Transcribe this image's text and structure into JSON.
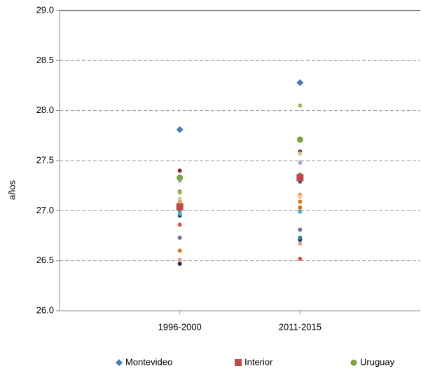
{
  "chart_data": {
    "type": "scatter",
    "y_label": "años",
    "categories": [
      "1996-2000",
      "2011-2015",
      null
    ],
    "ylim": [
      26.0,
      29.0
    ],
    "yticks": [
      {
        "value": 26.0,
        "label": "26.0"
      },
      {
        "value": 26.5,
        "label": "26.5"
      },
      {
        "value": 27.0,
        "label": "27.0"
      },
      {
        "value": 27.5,
        "label": "27.5"
      },
      {
        "value": 28.0,
        "label": "28.0"
      },
      {
        "value": 28.5,
        "label": "28.5"
      },
      {
        "value": 29.0,
        "label": "29.0"
      }
    ],
    "grid": true,
    "legend": "bottom",
    "series": [
      {
        "name": "Montevideo",
        "color": "#4a7ebb",
        "marker": "diamond",
        "values": [
          27.81,
          28.28,
          null
        ]
      },
      {
        "name": "Interior",
        "color": "#be4b48",
        "marker": "square",
        "values": [
          27.04,
          27.33,
          null
        ]
      },
      {
        "name": "Uruguay",
        "color": "#7ea345",
        "marker": "circle",
        "values": [
          27.33,
          27.71,
          null
        ]
      },
      {
        "color": "#8b2a2a",
        "values": [
          27.4,
          27.59,
          null
        ]
      },
      {
        "color": "#6e8c3a",
        "values": [
          27.19,
          27.36,
          null
        ]
      },
      {
        "color": "#9bbb59",
        "values": [
          27.18,
          28.05,
          null
        ]
      },
      {
        "color": "#c3d69b",
        "values": [
          27.12,
          27.57,
          null
        ]
      },
      {
        "color": "#f59d56",
        "values": [
          27.09,
          27.16,
          null
        ]
      },
      {
        "color": "#fac090",
        "values": [
          27.06,
          27.14,
          null
        ]
      },
      {
        "color": "#e46c0a",
        "values": [
          27.03,
          27.03,
          null
        ]
      },
      {
        "color": "#4f81bd",
        "values": [
          27.0,
          27.29,
          null
        ]
      },
      {
        "color": "#1f497d",
        "values": [
          26.95,
          27.3,
          null
        ]
      },
      {
        "color": "#4bacc6",
        "values": [
          26.97,
          26.99,
          null
        ]
      },
      {
        "color": "#d9534f",
        "values": [
          26.86,
          26.52,
          null
        ]
      },
      {
        "color": "#8064a2",
        "values": [
          26.73,
          26.81,
          null
        ]
      },
      {
        "color": "#b3a2c7",
        "values": [
          27.3,
          27.48,
          null
        ]
      },
      {
        "color": "#d87a1a",
        "values": [
          26.6,
          27.09,
          null
        ]
      },
      {
        "color": "#e6a0a0",
        "values": [
          26.51,
          26.67,
          null
        ]
      },
      {
        "color": "#17365d",
        "values": [
          26.47,
          26.71,
          null
        ]
      },
      {
        "color": "#31859c",
        "values": [
          null,
          26.73,
          null
        ]
      }
    ]
  }
}
